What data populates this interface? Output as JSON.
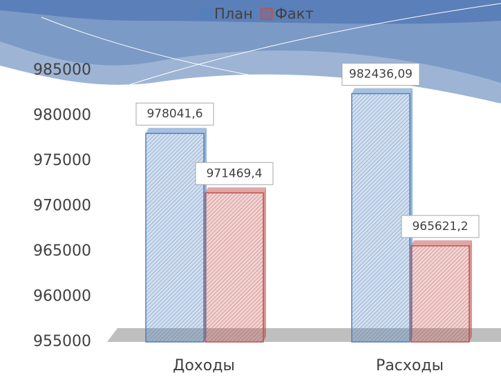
{
  "chart_data": {
    "type": "bar",
    "categories": [
      "Доходы",
      "Расходы"
    ],
    "series": [
      {
        "name": "План",
        "color": "#4f81bd",
        "values": [
          978041.6,
          982436.09
        ],
        "value_labels": [
          "978041,6",
          "982436,09"
        ]
      },
      {
        "name": "Факт",
        "color": "#c0504d",
        "values": [
          971469.4,
          965621.2
        ],
        "value_labels": [
          "971469,4",
          "965621,2"
        ]
      }
    ],
    "ylim": [
      955000,
      985000
    ],
    "yticks": [
      955000,
      960000,
      965000,
      970000,
      975000,
      980000,
      985000
    ],
    "legend": "top"
  }
}
